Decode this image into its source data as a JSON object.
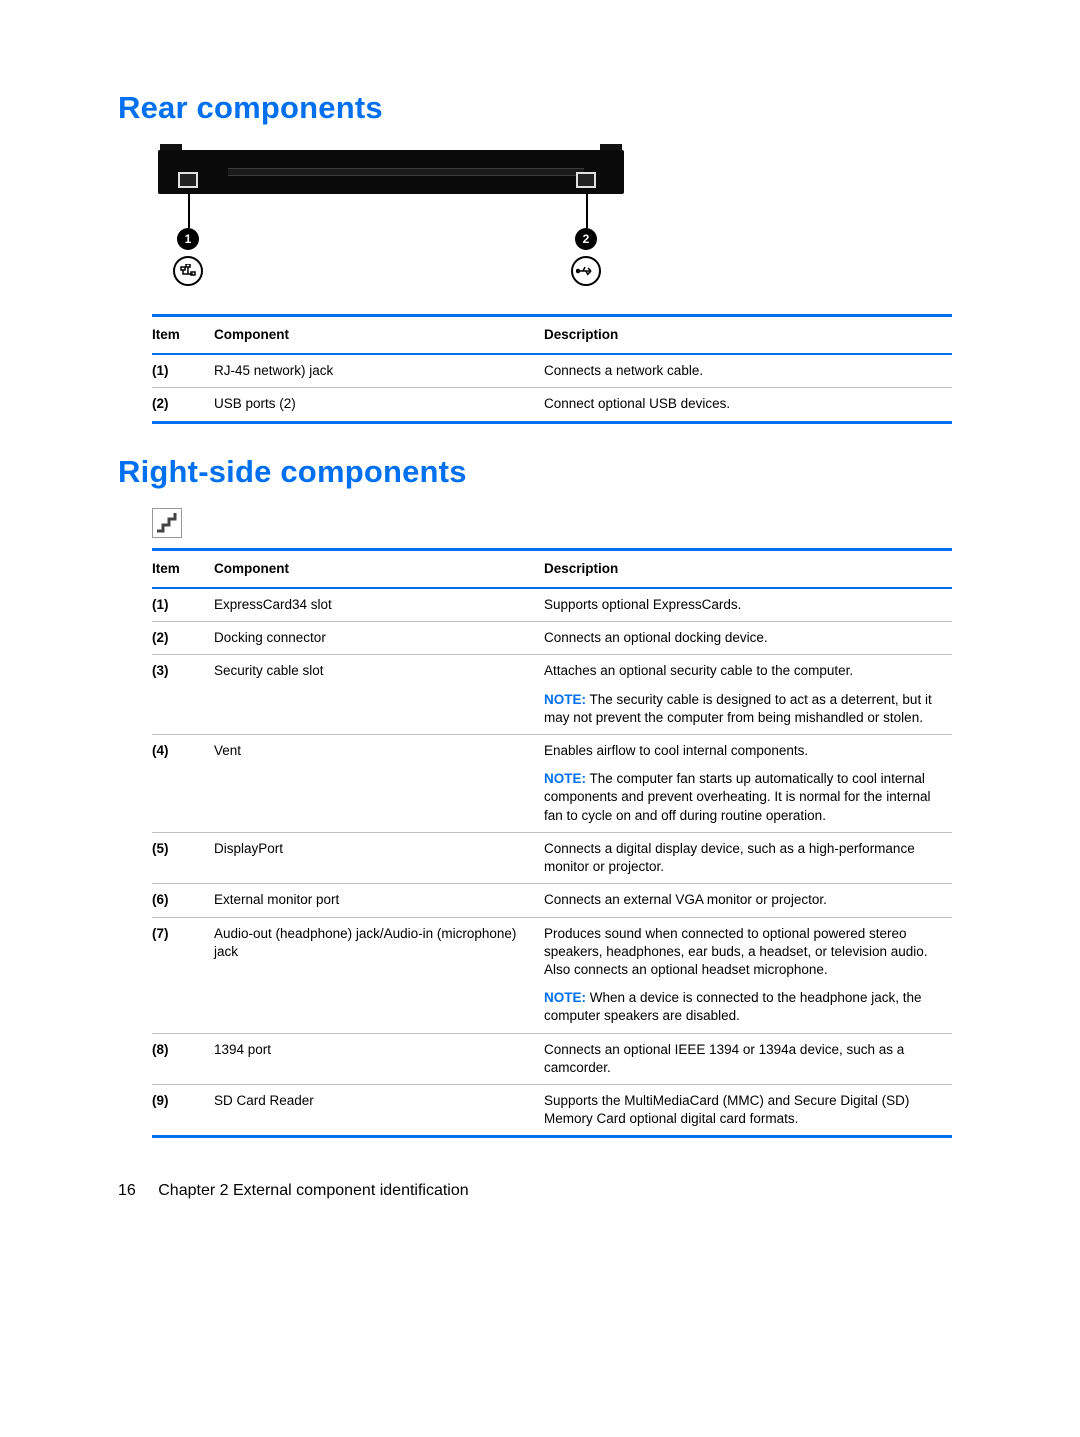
{
  "colors": {
    "accent": "#0070f0",
    "text": "#000000",
    "rule": "#bfbfbf",
    "bg": "#ffffff"
  },
  "rear": {
    "heading": "Rear components",
    "callouts": [
      {
        "n": "1",
        "icon": "•••"
      },
      {
        "n": "2",
        "icon": "⇔"
      }
    ],
    "table": {
      "headers": {
        "item": "Item",
        "component": "Component",
        "description": "Description"
      },
      "rows": [
        {
          "item": "(1)",
          "component": "RJ-45 network) jack",
          "desc": [
            {
              "type": "plain",
              "text": "Connects a network cable."
            }
          ]
        },
        {
          "item": "(2)",
          "component": "USB ports (2)",
          "desc": [
            {
              "type": "plain",
              "text": "Connect optional USB devices."
            }
          ]
        }
      ]
    }
  },
  "right": {
    "heading": "Right-side components",
    "table": {
      "headers": {
        "item": "Item",
        "component": "Component",
        "description": "Description"
      },
      "rows": [
        {
          "item": "(1)",
          "component": "ExpressCard34 slot",
          "desc": [
            {
              "type": "plain",
              "text": "Supports optional ExpressCards."
            }
          ]
        },
        {
          "item": "(2)",
          "component": "Docking connector",
          "desc": [
            {
              "type": "plain",
              "text": "Connects an optional docking device."
            }
          ]
        },
        {
          "item": "(3)",
          "component": "Security cable slot",
          "desc": [
            {
              "type": "plain",
              "text": "Attaches an optional security cable to the computer."
            },
            {
              "type": "note",
              "label": "NOTE:",
              "text": "The security cable is designed to act as a deterrent, but it may not prevent the computer from being mishandled or stolen."
            }
          ]
        },
        {
          "item": "(4)",
          "component": "Vent",
          "desc": [
            {
              "type": "plain",
              "text": "Enables airflow to cool internal components."
            },
            {
              "type": "note",
              "label": "NOTE:",
              "text": "The computer fan starts up automatically to cool internal components and prevent overheating. It is normal for the internal fan to cycle on and off during routine operation."
            }
          ]
        },
        {
          "item": "(5)",
          "component": "DisplayPort",
          "desc": [
            {
              "type": "plain",
              "text": "Connects a digital display device, such as a high-performance monitor or projector."
            }
          ]
        },
        {
          "item": "(6)",
          "component": "External monitor port",
          "desc": [
            {
              "type": "plain",
              "text": "Connects an external VGA monitor or projector."
            }
          ]
        },
        {
          "item": "(7)",
          "component": "Audio-out (headphone) jack/Audio-in (microphone) jack",
          "desc": [
            {
              "type": "plain",
              "text": "Produces sound when connected to optional powered stereo speakers, headphones, ear buds, a headset, or television audio. Also connects an optional headset microphone."
            },
            {
              "type": "note",
              "label": "NOTE:",
              "text": "When a device is connected to the headphone jack, the computer speakers are disabled."
            }
          ]
        },
        {
          "item": "(8)",
          "component": "1394 port",
          "desc": [
            {
              "type": "plain",
              "text": "Connects an optional IEEE 1394 or 1394a device, such as a camcorder."
            }
          ]
        },
        {
          "item": "(9)",
          "component": "SD Card Reader",
          "desc": [
            {
              "type": "plain",
              "text": "Supports the MultiMediaCard (MMC) and Secure Digital (SD) Memory Card optional digital card formats."
            }
          ]
        }
      ]
    }
  },
  "footer": {
    "page": "16",
    "chapter": "Chapter 2   External component identification"
  }
}
